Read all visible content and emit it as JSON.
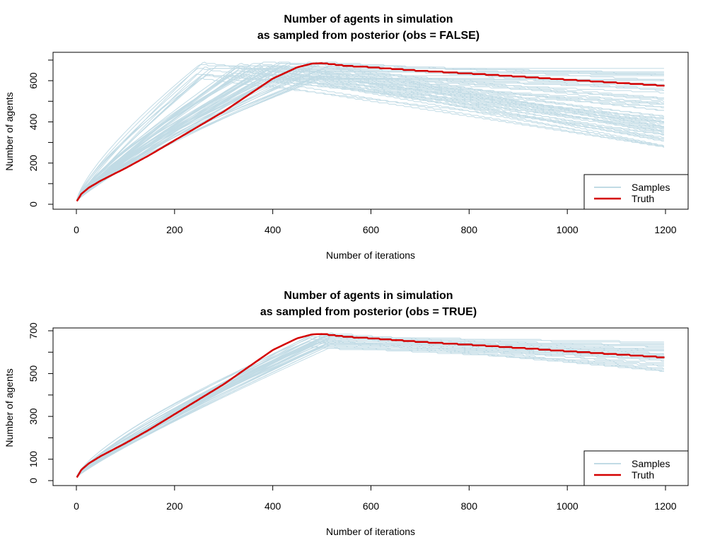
{
  "colors": {
    "samples": "#c1dbe5",
    "truth": "#d40000",
    "axis": "#000000",
    "background": "#ffffff"
  },
  "chart_data": [
    {
      "type": "line",
      "title": "Number of agents in simulation",
      "subtitle": "as sampled from posterior (obs = FALSE)",
      "xlabel": "Number of iterations",
      "ylabel": "Number of agents",
      "xlim": [
        0,
        1200
      ],
      "ylim": [
        0,
        700
      ],
      "xticks": [
        0,
        200,
        400,
        600,
        800,
        1000,
        1200
      ],
      "yticks": [
        0,
        200,
        400,
        600
      ],
      "legend": {
        "placement": "bottom-right",
        "entries": [
          "Samples",
          "Truth"
        ]
      },
      "truth": {
        "name": "Truth",
        "x": [
          1,
          10,
          25,
          50,
          100,
          150,
          200,
          250,
          300,
          350,
          400,
          450,
          480,
          500,
          550,
          600,
          700,
          800,
          900,
          1000,
          1100,
          1200
        ],
        "y": [
          15,
          50,
          80,
          115,
          175,
          240,
          310,
          380,
          450,
          530,
          610,
          665,
          683,
          685,
          672,
          665,
          648,
          635,
          620,
          605,
          590,
          575
        ]
      },
      "samples": {
        "name": "Samples",
        "count": 70,
        "peak_iteration_range": [
          240,
          520
        ],
        "peak_value_range": [
          600,
          690
        ],
        "end_value_range": [
          275,
          665
        ]
      }
    },
    {
      "type": "line",
      "title": "Number of agents in simulation",
      "subtitle": "as sampled from posterior (obs = TRUE)",
      "xlabel": "Number of iterations",
      "ylabel": "Number of agents",
      "xlim": [
        0,
        1200
      ],
      "ylim": [
        0,
        700
      ],
      "xticks": [
        0,
        200,
        400,
        600,
        800,
        1000,
        1200
      ],
      "yticks": [
        0,
        100,
        300,
        500,
        700
      ],
      "legend": {
        "placement": "bottom-right",
        "entries": [
          "Samples",
          "Truth"
        ]
      },
      "truth": {
        "name": "Truth",
        "x": [
          1,
          10,
          25,
          50,
          100,
          150,
          200,
          250,
          300,
          350,
          400,
          450,
          480,
          500,
          550,
          600,
          700,
          800,
          900,
          1000,
          1100,
          1200
        ],
        "y": [
          15,
          50,
          80,
          115,
          175,
          240,
          310,
          380,
          450,
          530,
          610,
          665,
          683,
          685,
          672,
          665,
          648,
          635,
          620,
          605,
          590,
          575
        ]
      },
      "samples": {
        "name": "Samples",
        "count": 40,
        "peak_iteration_range": [
          470,
          520
        ],
        "peak_value_range": [
          615,
          690
        ],
        "end_value_range": [
          495,
          650
        ]
      }
    }
  ]
}
